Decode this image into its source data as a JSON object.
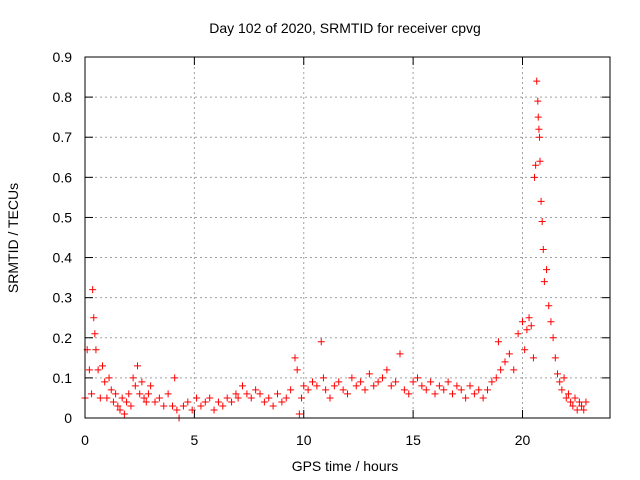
{
  "chart_data": {
    "type": "scatter",
    "title": "Day 102 of 2020, SRMTID for receiver cpvg",
    "xlabel": "GPS time / hours",
    "ylabel": "SRMTID / TECUs",
    "xlim": [
      0,
      24
    ],
    "ylim": [
      0,
      0.9
    ],
    "xticks": [
      0,
      5,
      10,
      15,
      20
    ],
    "xtick_labels": [
      "0",
      "5",
      "10",
      "15",
      "20"
    ],
    "yticks": [
      0,
      0.1,
      0.2,
      0.3,
      0.4,
      0.5,
      0.6,
      0.7,
      0.8,
      0.9
    ],
    "ytick_labels": [
      "0",
      "0.1",
      "0.2",
      "0.3",
      "0.4",
      "0.5",
      "0.6",
      "0.7",
      "0.8",
      "0.9"
    ],
    "grid": true,
    "marker": "+",
    "color": "#ff0000",
    "series": [
      {
        "name": "SRMTID",
        "x": [
          0.0,
          0.1,
          0.2,
          0.3,
          0.35,
          0.4,
          0.45,
          0.5,
          0.6,
          0.7,
          0.8,
          0.9,
          1.0,
          1.1,
          1.2,
          1.3,
          1.4,
          1.5,
          1.6,
          1.7,
          1.8,
          1.9,
          2.0,
          2.1,
          2.2,
          2.3,
          2.4,
          2.5,
          2.6,
          2.7,
          2.8,
          2.9,
          3.0,
          3.2,
          3.4,
          3.6,
          3.8,
          4.0,
          4.1,
          4.2,
          4.3,
          4.5,
          4.7,
          4.9,
          5.1,
          5.3,
          5.5,
          5.7,
          5.9,
          6.1,
          6.3,
          6.5,
          6.7,
          6.9,
          7.0,
          7.2,
          7.4,
          7.6,
          7.8,
          8.0,
          8.2,
          8.4,
          8.6,
          8.8,
          9.0,
          9.2,
          9.4,
          9.6,
          9.7,
          9.8,
          9.9,
          10.0,
          10.2,
          10.4,
          10.6,
          10.8,
          10.9,
          11.0,
          11.2,
          11.4,
          11.6,
          11.8,
          12.0,
          12.2,
          12.4,
          12.6,
          12.8,
          13.0,
          13.2,
          13.4,
          13.6,
          13.8,
          14.0,
          14.2,
          14.4,
          14.6,
          14.8,
          15.0,
          15.2,
          15.4,
          15.6,
          15.8,
          16.0,
          16.2,
          16.4,
          16.6,
          16.8,
          17.0,
          17.2,
          17.4,
          17.6,
          17.8,
          18.0,
          18.2,
          18.4,
          18.6,
          18.8,
          18.9,
          19.0,
          19.2,
          19.4,
          19.6,
          19.8,
          20.0,
          20.1,
          20.2,
          20.3,
          20.4,
          20.5,
          20.55,
          20.6,
          20.65,
          20.7,
          20.72,
          20.75,
          20.78,
          20.8,
          20.85,
          20.9,
          20.95,
          21.0,
          21.1,
          21.2,
          21.3,
          21.4,
          21.5,
          21.6,
          21.7,
          21.8,
          21.9,
          22.0,
          22.1,
          22.2,
          22.3,
          22.4,
          22.5,
          22.6,
          22.7,
          22.8,
          22.9
        ],
        "y": [
          0.05,
          0.17,
          0.12,
          0.06,
          0.32,
          0.25,
          0.21,
          0.17,
          0.12,
          0.05,
          0.13,
          0.09,
          0.05,
          0.1,
          0.07,
          0.04,
          0.06,
          0.03,
          0.02,
          0.05,
          0.01,
          0.04,
          0.06,
          0.03,
          0.1,
          0.08,
          0.13,
          0.06,
          0.09,
          0.05,
          0.04,
          0.06,
          0.08,
          0.04,
          0.05,
          0.03,
          0.06,
          0.03,
          0.1,
          0.02,
          0.0,
          0.03,
          0.04,
          0.02,
          0.05,
          0.03,
          0.04,
          0.05,
          0.02,
          0.04,
          0.03,
          0.05,
          0.04,
          0.06,
          0.05,
          0.08,
          0.06,
          0.05,
          0.07,
          0.06,
          0.04,
          0.05,
          0.03,
          0.06,
          0.04,
          0.05,
          0.07,
          0.15,
          0.12,
          0.01,
          0.05,
          0.08,
          0.07,
          0.09,
          0.08,
          0.19,
          0.1,
          0.07,
          0.05,
          0.08,
          0.09,
          0.07,
          0.06,
          0.1,
          0.08,
          0.09,
          0.07,
          0.11,
          0.08,
          0.09,
          0.1,
          0.12,
          0.08,
          0.09,
          0.16,
          0.07,
          0.06,
          0.09,
          0.1,
          0.08,
          0.07,
          0.09,
          0.06,
          0.08,
          0.07,
          0.09,
          0.06,
          0.08,
          0.07,
          0.05,
          0.08,
          0.06,
          0.07,
          0.05,
          0.07,
          0.09,
          0.1,
          0.19,
          0.12,
          0.14,
          0.16,
          0.12,
          0.21,
          0.24,
          0.17,
          0.22,
          0.25,
          0.23,
          0.15,
          0.6,
          0.63,
          0.84,
          0.79,
          0.75,
          0.72,
          0.7,
          0.64,
          0.54,
          0.49,
          0.42,
          0.34,
          0.37,
          0.28,
          0.24,
          0.2,
          0.15,
          0.11,
          0.09,
          0.07,
          0.1,
          0.05,
          0.06,
          0.04,
          0.03,
          0.05,
          0.02,
          0.04,
          0.03,
          0.02,
          0.04
        ]
      }
    ]
  }
}
